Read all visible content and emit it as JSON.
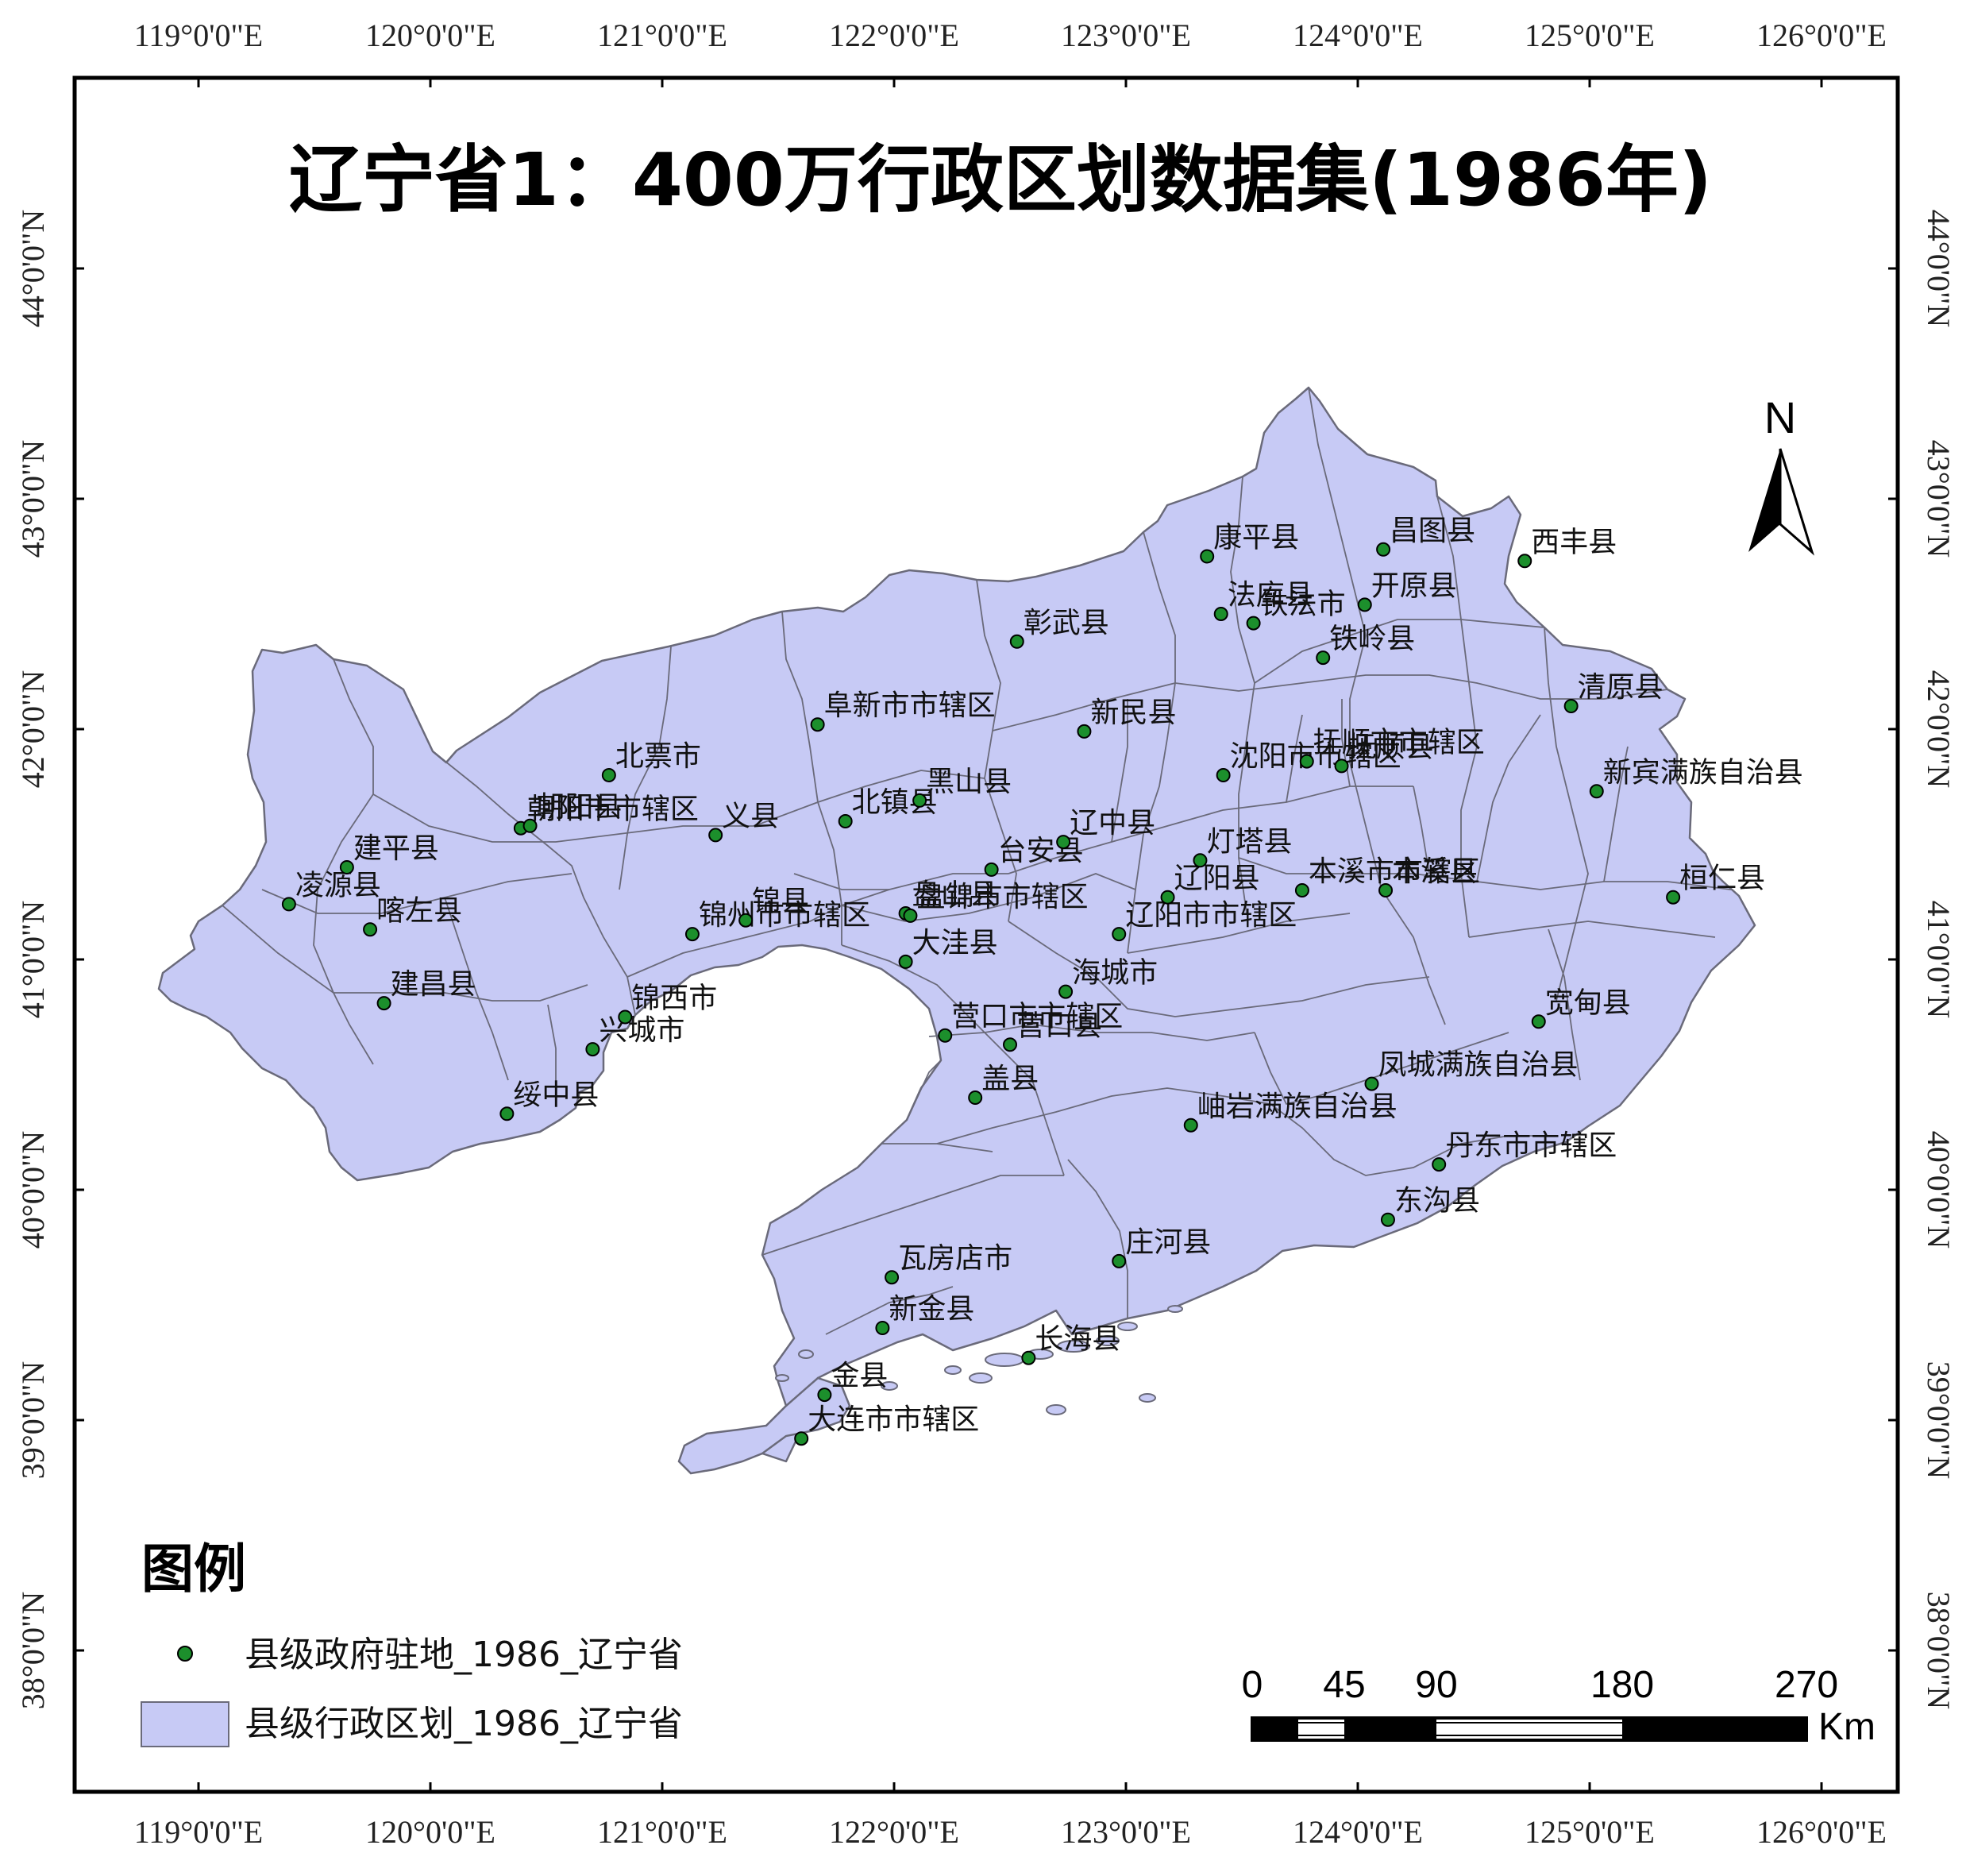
{
  "map": {
    "title": "辽宁省1：400万行政区划数据集(1986年)",
    "lon_ticks": [
      "119°0'0\"E",
      "120°0'0\"E",
      "121°0'0\"E",
      "122°0'0\"E",
      "123°0'0\"E",
      "124°0'0\"E",
      "125°0'0\"E",
      "126°0'0\"E"
    ],
    "lat_ticks": [
      "44°0'0\"N",
      "43°0'0\"N",
      "42°0'0\"N",
      "41°0'0\"N",
      "40°0'0\"N",
      "39°0'0\"N",
      "38°0'0\"N"
    ],
    "north_label": "N",
    "colors": {
      "fill": "#c7caf5",
      "border": "#6a6a7a",
      "point": "#1c8f2c",
      "frame": "#000000"
    },
    "legend": {
      "title": "图例",
      "point_label": "县级政府驻地_1986_辽宁省",
      "polygon_label": "县级行政区划_1986_辽宁省"
    },
    "scale": {
      "ticks": [
        "0",
        "45",
        "90",
        "180",
        "270"
      ],
      "unit": "Km"
    },
    "counties": [
      {
        "name": "康平县",
        "lon": 123.35,
        "lat": 42.75
      },
      {
        "name": "昌图县",
        "lon": 124.11,
        "lat": 42.78
      },
      {
        "name": "西丰县",
        "lon": 124.72,
        "lat": 42.73
      },
      {
        "name": "法库县",
        "lon": 123.41,
        "lat": 42.5
      },
      {
        "name": "开原县",
        "lon": 124.03,
        "lat": 42.54
      },
      {
        "name": "彰武县",
        "lon": 122.53,
        "lat": 42.38
      },
      {
        "name": "铁法市",
        "lon": 123.55,
        "lat": 42.46
      },
      {
        "name": "铁岭县",
        "lon": 123.85,
        "lat": 42.31
      },
      {
        "name": "清原县",
        "lon": 124.92,
        "lat": 42.1
      },
      {
        "name": "阜新市市辖区",
        "lon": 121.67,
        "lat": 42.02
      },
      {
        "name": "新民县",
        "lon": 122.82,
        "lat": 41.99
      },
      {
        "name": "北票市",
        "lon": 120.77,
        "lat": 41.8
      },
      {
        "name": "沈阳市市辖区",
        "lon": 123.42,
        "lat": 41.8
      },
      {
        "name": "抚顺县",
        "lon": 123.93,
        "lat": 41.84
      },
      {
        "name": "新宾满族自治县",
        "lon": 125.03,
        "lat": 41.73
      },
      {
        "name": "抚顺市市辖区",
        "lon": 123.78,
        "lat": 41.86
      },
      {
        "name": "黑山县",
        "lon": 122.11,
        "lat": 41.69
      },
      {
        "name": "朝阳市市辖区",
        "lon": 120.39,
        "lat": 41.57
      },
      {
        "name": "朝阳县",
        "lon": 120.43,
        "lat": 41.58
      },
      {
        "name": "义县",
        "lon": 121.23,
        "lat": 41.54
      },
      {
        "name": "北镇县",
        "lon": 121.79,
        "lat": 41.6
      },
      {
        "name": "辽中县",
        "lon": 122.73,
        "lat": 41.51
      },
      {
        "name": "建平县",
        "lon": 119.64,
        "lat": 41.4
      },
      {
        "name": "台安县",
        "lon": 122.42,
        "lat": 41.39
      },
      {
        "name": "灯塔县",
        "lon": 123.32,
        "lat": 41.43
      },
      {
        "name": "凌源县",
        "lon": 119.39,
        "lat": 41.24
      },
      {
        "name": "本溪县",
        "lon": 124.12,
        "lat": 41.3
      },
      {
        "name": "桓仁县",
        "lon": 125.36,
        "lat": 41.27
      },
      {
        "name": "辽阳县",
        "lon": 123.18,
        "lat": 41.27
      },
      {
        "name": "本溪市市辖区",
        "lon": 123.76,
        "lat": 41.3
      },
      {
        "name": "锦县",
        "lon": 121.36,
        "lat": 41.17
      },
      {
        "name": "盘山县",
        "lon": 122.05,
        "lat": 41.2
      },
      {
        "name": "锦州市市辖区",
        "lon": 121.13,
        "lat": 41.11
      },
      {
        "name": "辽阳市市辖区",
        "lon": 122.97,
        "lat": 41.11
      },
      {
        "name": "盘锦市市辖区",
        "lon": 122.07,
        "lat": 41.19
      },
      {
        "name": "大洼县",
        "lon": 122.05,
        "lat": 40.99
      },
      {
        "name": "喀左县",
        "lon": 119.74,
        "lat": 41.13
      },
      {
        "name": "海城市",
        "lon": 122.74,
        "lat": 40.86
      },
      {
        "name": "建昌县",
        "lon": 119.8,
        "lat": 40.81
      },
      {
        "name": "锦西市",
        "lon": 120.84,
        "lat": 40.75
      },
      {
        "name": "营口市市辖区",
        "lon": 122.22,
        "lat": 40.67
      },
      {
        "name": "营口县",
        "lon": 122.5,
        "lat": 40.63
      },
      {
        "name": "宽甸县",
        "lon": 124.78,
        "lat": 40.73
      },
      {
        "name": "兴城市",
        "lon": 120.7,
        "lat": 40.61
      },
      {
        "name": "凤城满族自治县",
        "lon": 124.06,
        "lat": 40.46
      },
      {
        "name": "盖县",
        "lon": 122.35,
        "lat": 40.4
      },
      {
        "name": "岫岩满族自治县",
        "lon": 123.28,
        "lat": 40.28
      },
      {
        "name": "绥中县",
        "lon": 120.33,
        "lat": 40.33
      },
      {
        "name": "丹东市市辖区",
        "lon": 124.35,
        "lat": 40.11
      },
      {
        "name": "东沟县",
        "lon": 124.13,
        "lat": 39.87
      },
      {
        "name": "庄河县",
        "lon": 122.97,
        "lat": 39.69
      },
      {
        "name": "瓦房店市",
        "lon": 121.99,
        "lat": 39.62
      },
      {
        "name": "新金县",
        "lon": 121.95,
        "lat": 39.4
      },
      {
        "name": "长海县",
        "lon": 122.58,
        "lat": 39.27
      },
      {
        "name": "金县",
        "lon": 121.7,
        "lat": 39.11
      },
      {
        "name": "大连市市辖区",
        "lon": 121.6,
        "lat": 38.92
      }
    ]
  }
}
